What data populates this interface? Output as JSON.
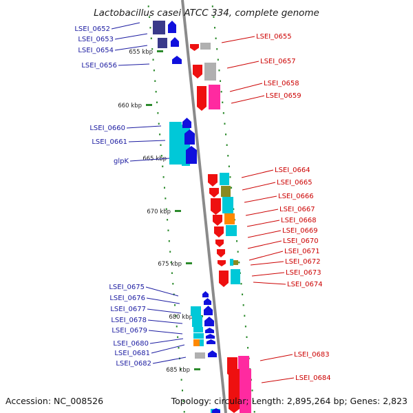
{
  "title": "Lactobacillus casei ATCC 334, complete genome",
  "accession": "Accession: NC_008526",
  "topology": "Topology: circular; Length: 2,895,264 bp; Genes: 2,823",
  "colors": {
    "left_label": "#1a1aa0",
    "right_label": "#cc0000",
    "backbone": "#888888",
    "tick": "#2b8a2b",
    "forward_gene": "#1010dd",
    "reverse_gene": "#ee1010",
    "cog_cyan": "#00c8d8",
    "cog_magenta": "#ff2aa0",
    "cog_orange": "#ff8800",
    "cog_olive": "#8a8a22",
    "cog_grey": "#b0b0b0",
    "cog_navy": "#3a3a8a"
  },
  "ticks": [
    "655 kbp",
    "660 kbp",
    "665 kbp",
    "670 kbp",
    "675 kbp",
    "680 kbp",
    "685 kbp"
  ],
  "genes_left": [
    "LSEI_0652",
    "LSEI_0653",
    "LSEI_0654",
    "LSEI_0656",
    "LSEI_0660",
    "LSEI_0661",
    "glpK",
    "LSEI_0675",
    "LSEI_0676",
    "LSEI_0677",
    "LSEI_0678",
    "LSEI_0679",
    "LSEI_0680",
    "LSEI_0681",
    "LSEI_0682"
  ],
  "genes_right": [
    "LSEI_0655",
    "LSEI_0657",
    "LSEI_0658",
    "LSEI_0659",
    "LSEI_0664",
    "LSEI_0665",
    "LSEI_0666",
    "LSEI_0667",
    "LSEI_0668",
    "LSEI_0669",
    "LSEI_0670",
    "LSEI_0671",
    "LSEI_0672",
    "LSEI_0673",
    "LSEI_0674",
    "LSEI_0683",
    "LSEI_0684"
  ]
}
